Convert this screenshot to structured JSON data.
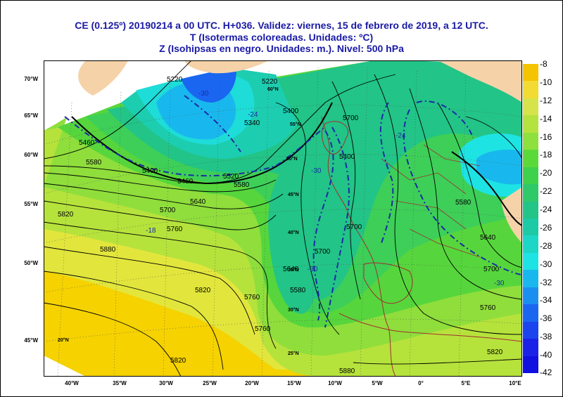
{
  "titles": {
    "line1": "CE (0.125º) 20190214  a 00 UTC.  H+036. Validez: viernes, 15 de febrero de 2019,  a  12 UTC.",
    "line2": "T (Isotermas coloreadas. Unidades: ºC)",
    "line3": "Z (Isohipsas en negro. Unidades: m.).   Nivel: 500 hPa"
  },
  "colors": {
    "title": "#1a1aa6",
    "land": "#f5d2a8",
    "contour": "#000000",
    "dash_isotherm": "#1a2aa6",
    "border": "#a03030"
  },
  "lat_labels": [
    "70°W",
    "65°W",
    "60°W",
    "55°W",
    "50°W",
    "45°W"
  ],
  "lon_labels": [
    "40°W",
    "35°W",
    "30°W",
    "25°W",
    "20°W",
    "15°W",
    "10°W",
    "5°W",
    "0°",
    "5°E",
    "10°E"
  ],
  "grid_labels": [
    "60°N",
    "55°N",
    "50°N",
    "45°N",
    "40°N",
    "35°N",
    "30°N",
    "25°N",
    "20°N"
  ],
  "contour_labels": [
    "5220",
    "5220",
    "5340",
    "5400",
    "5460",
    "5520",
    "5580",
    "5640",
    "5700",
    "5760",
    "5820",
    "5880",
    "5580",
    "5460",
    "5400",
    "5580",
    "5640",
    "5700",
    "5700",
    "5760",
    "5760",
    "5820",
    "5820",
    "5880",
    "5700",
    "5760",
    "5820",
    "5640",
    "5700",
    "5580",
    "5400"
  ],
  "isotherm_labels": [
    "-24",
    "-30",
    "-30",
    "-30",
    "-24",
    "-30",
    "-18"
  ],
  "legend": {
    "labels": [
      "-8",
      "-10",
      "-12",
      "-14",
      "-16",
      "-18",
      "-20",
      "-22",
      "-24",
      "-26",
      "-28",
      "-30",
      "-32",
      "-34",
      "-36",
      "-38",
      "-40",
      "-42"
    ],
    "colors": [
      "#f5c400",
      "#f2db33",
      "#d5e44a",
      "#b4e23e",
      "#8ee03e",
      "#5cd93a",
      "#3fd14c",
      "#2fc96a",
      "#22c487",
      "#1ccaa6",
      "#1cd7c6",
      "#1ee3e3",
      "#18b8ee",
      "#1a8ff0",
      "#1a66f0",
      "#1b44ee",
      "#1b22e8",
      "#1010e0"
    ]
  }
}
